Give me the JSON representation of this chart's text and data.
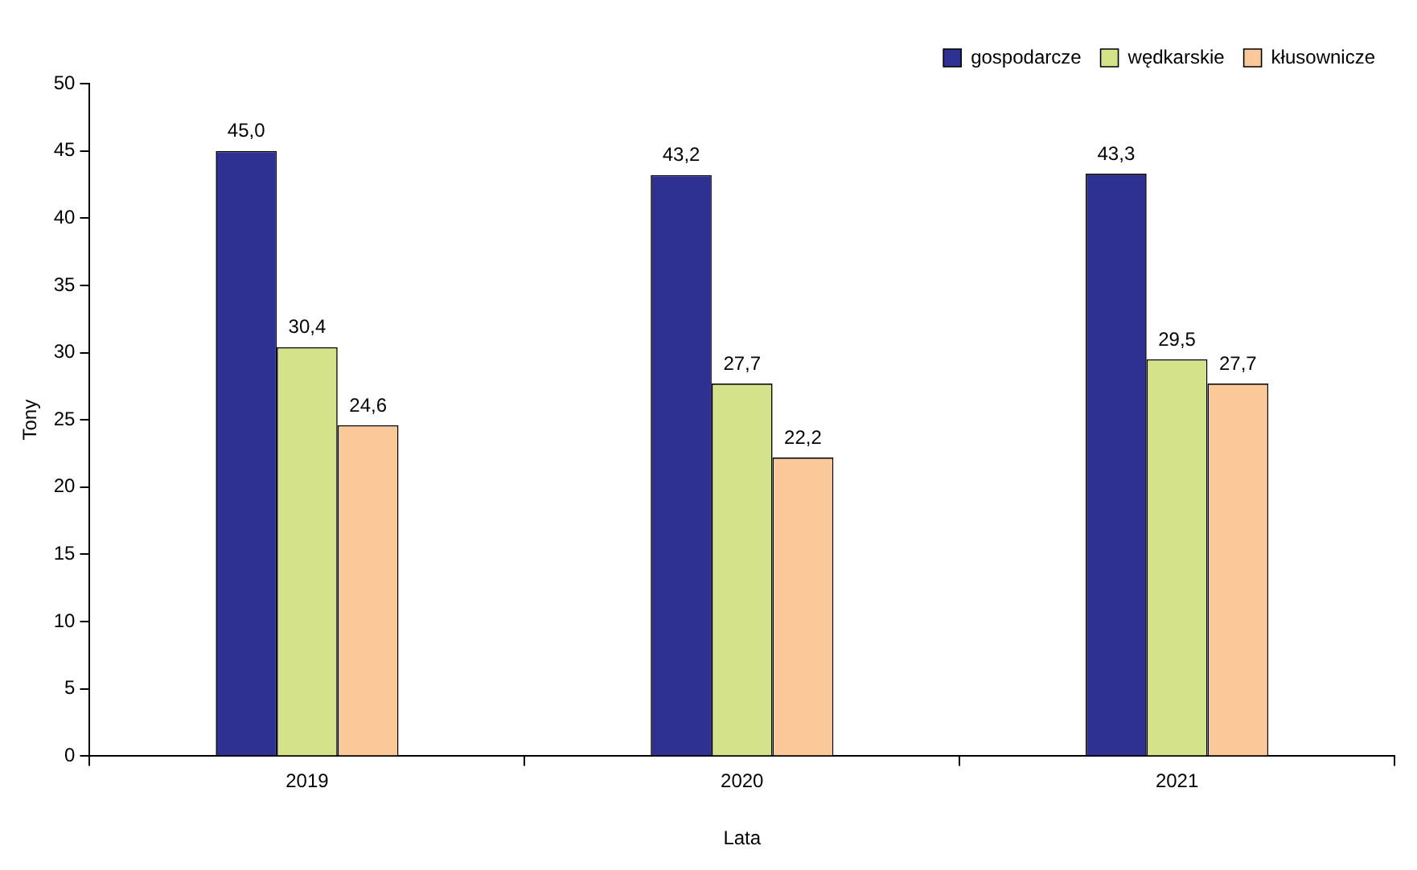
{
  "chart_data": {
    "type": "bar",
    "xlabel": "Lata",
    "ylabel": "Tony",
    "categories": [
      "2019",
      "2020",
      "2021"
    ],
    "series": [
      {
        "name": "gospodarcze",
        "color": "#2e3192",
        "values": [
          45.0,
          43.2,
          43.3
        ],
        "value_labels": [
          "45,0",
          "43,2",
          "43,3"
        ]
      },
      {
        "name": "wędkarskie",
        "color": "#d4e38a",
        "values": [
          30.4,
          27.7,
          29.5
        ],
        "value_labels": [
          "30,4",
          "27,7",
          "29,5"
        ]
      },
      {
        "name": "kłusownicze",
        "color": "#fbc999",
        "values": [
          24.6,
          22.2,
          27.7
        ],
        "value_labels": [
          "24,6",
          "22,2",
          "27,7"
        ]
      }
    ],
    "ylim": [
      0,
      50
    ],
    "yticks": [
      0,
      5,
      10,
      15,
      20,
      25,
      30,
      35,
      40,
      45,
      50
    ],
    "grid": false,
    "legend": "top right"
  }
}
